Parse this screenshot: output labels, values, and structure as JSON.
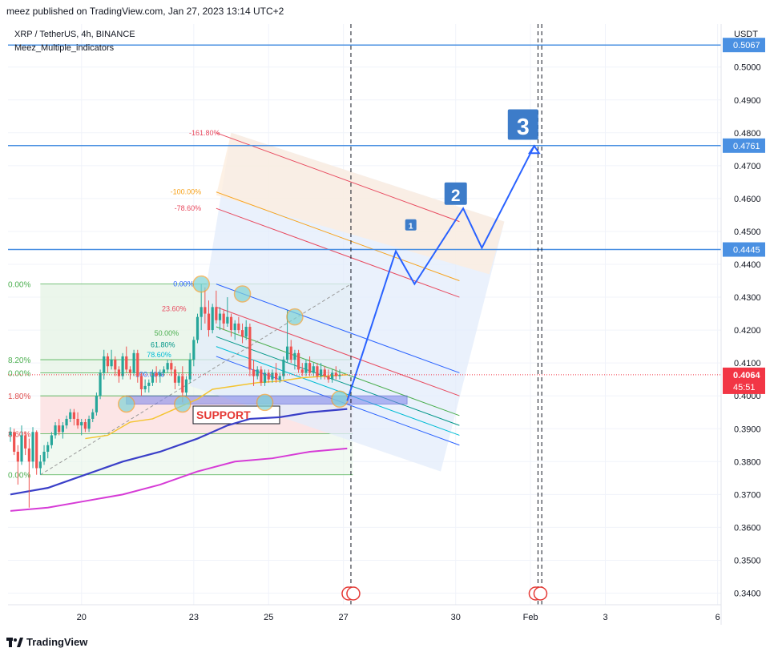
{
  "header": {
    "publisher": "meez published on TradingView.com, Jan 27, 2023 13:14 UTC+2"
  },
  "legend": {
    "symbol": "XRP / TetherUS, 4h, BINANCE",
    "indicator": "Meez_Multiple_indicators"
  },
  "axis": {
    "currency": "USDT"
  },
  "price_label": {
    "value": "0.4064",
    "countdown": "45:51"
  },
  "annotations": {
    "support": "SUPPORT",
    "wave1": "1",
    "wave2": "2",
    "wave3": "3"
  },
  "footer": {
    "brand": "TradingView"
  },
  "colors": {
    "bull": "#26a69a",
    "bear": "#ef5350",
    "hline": "#4a90e2",
    "ma_fast": "#f4c430",
    "ma_mid": "#3a3fc8",
    "ma_slow": "#d63bd6",
    "wave": "#2962ff",
    "price": "#f23645"
  },
  "chart_data": {
    "type": "candlestick",
    "title": "XRP / TetherUS, 4h, BINANCE",
    "ylim": [
      0.335,
      0.509
    ],
    "y_ticks": [
      0.34,
      0.35,
      0.36,
      0.37,
      0.38,
      0.39,
      0.4,
      0.41,
      0.42,
      0.43,
      0.44,
      0.45,
      0.46,
      0.47,
      0.48,
      0.49,
      0.5
    ],
    "x_ticks": [
      {
        "label": "20",
        "slot": 19
      },
      {
        "label": "23",
        "slot": 49
      },
      {
        "label": "25",
        "slot": 69
      },
      {
        "label": "27",
        "slot": 89
      },
      {
        "label": "30",
        "slot": 119
      },
      {
        "label": "Feb",
        "slot": 139
      },
      {
        "label": "3",
        "slot": 159
      },
      {
        "label": "6",
        "slot": 189
      }
    ],
    "candles": [
      [
        0.388,
        0.3905,
        0.386,
        0.389
      ],
      [
        0.389,
        0.39,
        0.382,
        0.383
      ],
      [
        0.383,
        0.385,
        0.373,
        0.38
      ],
      [
        0.38,
        0.391,
        0.379,
        0.388
      ],
      [
        0.388,
        0.389,
        0.382,
        0.384
      ],
      [
        0.384,
        0.387,
        0.366,
        0.38
      ],
      [
        0.38,
        0.3905,
        0.378,
        0.389
      ],
      [
        0.389,
        0.3895,
        0.376,
        0.378
      ],
      [
        0.378,
        0.382,
        0.376,
        0.38
      ],
      [
        0.38,
        0.385,
        0.379,
        0.383
      ],
      [
        0.383,
        0.386,
        0.381,
        0.385
      ],
      [
        0.385,
        0.389,
        0.384,
        0.388
      ],
      [
        0.388,
        0.392,
        0.387,
        0.391
      ],
      [
        0.391,
        0.393,
        0.388,
        0.389
      ],
      [
        0.389,
        0.392,
        0.387,
        0.391
      ],
      [
        0.391,
        0.394,
        0.39,
        0.393
      ],
      [
        0.393,
        0.396,
        0.392,
        0.395
      ],
      [
        0.395,
        0.396,
        0.391,
        0.393
      ],
      [
        0.393,
        0.395,
        0.39,
        0.391
      ],
      [
        0.391,
        0.393,
        0.388,
        0.392
      ],
      [
        0.392,
        0.393,
        0.389,
        0.39
      ],
      [
        0.39,
        0.394,
        0.389,
        0.393
      ],
      [
        0.393,
        0.396,
        0.392,
        0.395
      ],
      [
        0.395,
        0.401,
        0.394,
        0.4
      ],
      [
        0.4,
        0.408,
        0.399,
        0.407
      ],
      [
        0.407,
        0.414,
        0.405,
        0.412
      ],
      [
        0.412,
        0.413,
        0.407,
        0.409
      ],
      [
        0.409,
        0.414,
        0.408,
        0.411
      ],
      [
        0.411,
        0.412,
        0.406,
        0.408
      ],
      [
        0.408,
        0.409,
        0.404,
        0.406
      ],
      [
        0.406,
        0.413,
        0.405,
        0.412
      ],
      [
        0.412,
        0.415,
        0.407,
        0.408
      ],
      [
        0.408,
        0.409,
        0.405,
        0.407
      ],
      [
        0.407,
        0.414,
        0.406,
        0.413
      ],
      [
        0.413,
        0.414,
        0.404,
        0.406
      ],
      [
        0.406,
        0.407,
        0.4,
        0.402
      ],
      [
        0.402,
        0.405,
        0.401,
        0.403
      ],
      [
        0.403,
        0.405,
        0.401,
        0.404
      ],
      [
        0.404,
        0.408,
        0.403,
        0.407
      ],
      [
        0.407,
        0.409,
        0.404,
        0.406
      ],
      [
        0.406,
        0.408,
        0.404,
        0.407
      ],
      [
        0.407,
        0.409,
        0.406,
        0.408
      ],
      [
        0.408,
        0.411,
        0.407,
        0.41
      ],
      [
        0.41,
        0.411,
        0.406,
        0.408
      ],
      [
        0.408,
        0.409,
        0.402,
        0.404
      ],
      [
        0.404,
        0.407,
        0.403,
        0.406
      ],
      [
        0.406,
        0.409,
        0.398,
        0.401
      ],
      [
        0.401,
        0.406,
        0.4,
        0.405
      ],
      [
        0.405,
        0.413,
        0.404,
        0.411
      ],
      [
        0.411,
        0.418,
        0.409,
        0.417
      ],
      [
        0.417,
        0.425,
        0.416,
        0.424
      ],
      [
        0.424,
        0.434,
        0.42,
        0.427
      ],
      [
        0.427,
        0.433,
        0.422,
        0.425
      ],
      [
        0.425,
        0.429,
        0.418,
        0.42
      ],
      [
        0.42,
        0.428,
        0.419,
        0.427
      ],
      [
        0.427,
        0.432,
        0.422,
        0.423
      ],
      [
        0.423,
        0.427,
        0.42,
        0.425
      ],
      [
        0.425,
        0.426,
        0.42,
        0.422
      ],
      [
        0.422,
        0.43,
        0.421,
        0.424
      ],
      [
        0.424,
        0.425,
        0.418,
        0.42
      ],
      [
        0.42,
        0.423,
        0.417,
        0.422
      ],
      [
        0.422,
        0.424,
        0.419,
        0.42
      ],
      [
        0.42,
        0.422,
        0.416,
        0.418
      ],
      [
        0.418,
        0.423,
        0.417,
        0.421
      ],
      [
        0.421,
        0.422,
        0.406,
        0.408
      ],
      [
        0.408,
        0.411,
        0.403,
        0.406
      ],
      [
        0.406,
        0.409,
        0.405,
        0.408
      ],
      [
        0.408,
        0.409,
        0.403,
        0.404
      ],
      [
        0.404,
        0.408,
        0.403,
        0.407
      ],
      [
        0.407,
        0.408,
        0.404,
        0.405
      ],
      [
        0.405,
        0.408,
        0.404,
        0.407
      ],
      [
        0.407,
        0.41,
        0.404,
        0.405
      ],
      [
        0.405,
        0.407,
        0.404,
        0.406
      ],
      [
        0.406,
        0.412,
        0.405,
        0.411
      ],
      [
        0.411,
        0.426,
        0.41,
        0.415
      ],
      [
        0.415,
        0.417,
        0.41,
        0.411
      ],
      [
        0.411,
        0.414,
        0.408,
        0.413
      ],
      [
        0.413,
        0.414,
        0.407,
        0.408
      ],
      [
        0.408,
        0.41,
        0.406,
        0.407
      ],
      [
        0.407,
        0.411,
        0.406,
        0.41
      ],
      [
        0.41,
        0.412,
        0.406,
        0.407
      ],
      [
        0.407,
        0.41,
        0.406,
        0.409
      ],
      [
        0.409,
        0.41,
        0.405,
        0.406
      ],
      [
        0.406,
        0.41,
        0.405,
        0.408
      ],
      [
        0.408,
        0.409,
        0.405,
        0.406
      ],
      [
        0.406,
        0.408,
        0.404,
        0.405
      ],
      [
        0.405,
        0.408,
        0.404,
        0.407
      ],
      [
        0.407,
        0.409,
        0.405,
        0.406
      ],
      [
        0.406,
        0.408,
        0.405,
        0.4064
      ]
    ],
    "hlines": [
      {
        "price": 0.5067,
        "label": "0.5067"
      },
      {
        "price": 0.4761,
        "label": "0.4761"
      },
      {
        "price": 0.4445,
        "label": "0.4445"
      }
    ],
    "last_price": 0.4064,
    "ma_fast": [
      [
        20,
        0.387
      ],
      [
        26,
        0.388
      ],
      [
        32,
        0.392
      ],
      [
        38,
        0.393
      ],
      [
        44,
        0.396
      ],
      [
        50,
        0.399
      ],
      [
        54,
        0.402
      ],
      [
        60,
        0.403
      ],
      [
        66,
        0.404
      ],
      [
        72,
        0.4045
      ],
      [
        78,
        0.4055
      ],
      [
        84,
        0.406
      ],
      [
        90,
        0.4064
      ]
    ],
    "ma_mid": [
      [
        0,
        0.37
      ],
      [
        10,
        0.372
      ],
      [
        20,
        0.376
      ],
      [
        30,
        0.38
      ],
      [
        40,
        0.383
      ],
      [
        50,
        0.387
      ],
      [
        58,
        0.391
      ],
      [
        64,
        0.393
      ],
      [
        72,
        0.3935
      ],
      [
        80,
        0.395
      ],
      [
        90,
        0.396
      ]
    ],
    "ma_slow": [
      [
        0,
        0.365
      ],
      [
        10,
        0.366
      ],
      [
        20,
        0.368
      ],
      [
        30,
        0.37
      ],
      [
        40,
        0.373
      ],
      [
        50,
        0.377
      ],
      [
        60,
        0.38
      ],
      [
        70,
        0.381
      ],
      [
        80,
        0.383
      ],
      [
        90,
        0.384
      ]
    ],
    "fib_retracement": {
      "left_labels": [
        "0.00%",
        "8.20%",
        "0.00%",
        "1.80%",
        "8.60%",
        "0.00%"
      ],
      "levels": [
        0.434,
        0.411,
        0.407,
        0.4,
        0.3885,
        0.376
      ]
    },
    "fib_channel_labels": [
      "-161.80%",
      "-100.00%",
      "-78.60%",
      "0.00%",
      "23.60%",
      "50.00%",
      "61.80%",
      "78.60%",
      "100.00%"
    ],
    "support_zone": [
      0.3975,
      0.4
    ],
    "wave_path": [
      [
        90,
        0.3985
      ],
      [
        103,
        0.444
      ],
      [
        108,
        0.434
      ],
      [
        121,
        0.457
      ],
      [
        126,
        0.445
      ],
      [
        140,
        0.476
      ]
    ],
    "vertical_markers": [
      91,
      141,
      142
    ]
  }
}
